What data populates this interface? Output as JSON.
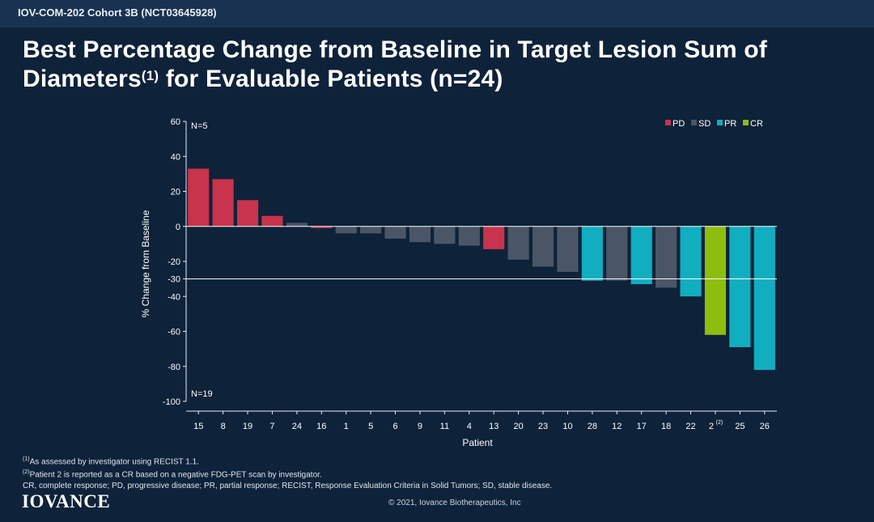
{
  "header": {
    "study_label": "IOV-COM-202 Cohort 3B (NCT03645928)"
  },
  "title": {
    "line1": "Best Percentage Change from Baseline in Target Lesion Sum of",
    "line2_pre": "Diameters",
    "line2_sup": "(1)",
    "line2_post": " for Evaluable Patients (n=24)"
  },
  "chart_data": {
    "type": "bar",
    "title": "Best Percentage Change from Baseline in Target Lesion Sum of Diameters for Evaluable Patients (n=24)",
    "xlabel": "Patient",
    "ylabel": "% Change from Baseline",
    "ylim": [
      -100,
      60
    ],
    "yticks": [
      60,
      40,
      20,
      0,
      -20,
      -30,
      -40,
      -60,
      -80,
      -100
    ],
    "reference_line": -30,
    "annotations": [
      "N=5",
      "N=19"
    ],
    "legend_position": "top-right",
    "legend": [
      {
        "label": "PD",
        "color": "#c8334d"
      },
      {
        "label": "SD",
        "color": "#4a5666"
      },
      {
        "label": "PR",
        "color": "#11aec0"
      },
      {
        "label": "CR",
        "color": "#8dbd0f"
      }
    ],
    "categories": [
      "15",
      "8",
      "19",
      "7",
      "24",
      "16",
      "1",
      "5",
      "6",
      "9",
      "11",
      "4",
      "13",
      "20",
      "23",
      "10",
      "28",
      "12",
      "17",
      "18",
      "22",
      "2",
      "25",
      "26"
    ],
    "category_superscripts": {
      "2": "(2)"
    },
    "values": [
      33,
      27,
      15,
      6,
      2,
      -1,
      -4,
      -4,
      -7,
      -9,
      -10,
      -11,
      -13,
      -19,
      -23,
      -26,
      -31,
      -31,
      -33,
      -35,
      -40,
      -62,
      -69,
      -82
    ],
    "responses": [
      "PD",
      "PD",
      "PD",
      "PD",
      "SD",
      "PD",
      "SD",
      "SD",
      "SD",
      "SD",
      "SD",
      "SD",
      "PD",
      "SD",
      "SD",
      "SD",
      "PR",
      "SD",
      "PR",
      "SD",
      "PR",
      "CR",
      "PR",
      "PR"
    ]
  },
  "footnotes": {
    "note1_sup": "(1)",
    "note1": "As assessed by investigator using RECIST 1.1.",
    "note2_sup": "(2)",
    "note2": "Patient 2 is reported as a CR based on a negative FDG-PET scan by investigator.",
    "abbreviations": "CR, complete response; PD, progressive disease; PR, partial response; RECIST, Response Evaluation Criteria in Solid Tumors; SD, stable disease."
  },
  "footer": {
    "logo": "IOVANCE",
    "copyright": "© 2021, Iovance Biotherapeutics, Inc"
  }
}
